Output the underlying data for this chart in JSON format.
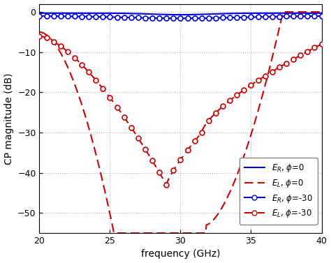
{
  "xlim": [
    20,
    40
  ],
  "ylim": [
    -55,
    2
  ],
  "yticks": [
    0,
    -10,
    -20,
    -30,
    -40,
    -50
  ],
  "xticks": [
    20,
    25,
    30,
    35,
    40
  ],
  "xlabel": "frequency (GHz)",
  "ylabel": "CP magnitude (dB)",
  "grid_color": "#aaaaaa",
  "background_color": "#ffffff",
  "blue_color": "#0000dd",
  "red_color": "#cc0000",
  "linewidth": 1.5,
  "markersize": 5
}
